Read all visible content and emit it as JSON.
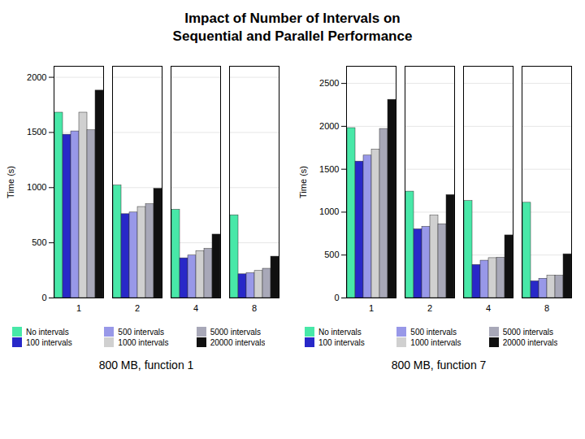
{
  "title": "Impact of Number of Intervals on\nSequential and Parallel Performance",
  "chart_data": [
    {
      "type": "bar",
      "subtitle": "800 MB, function 1",
      "categories": [
        "1",
        "2",
        "4",
        "8"
      ],
      "ylabel": "Time (s)",
      "series": [
        {
          "name": "No intervals",
          "color": "#48e8a8",
          "values": [
            1680,
            1020,
            800,
            750
          ]
        },
        {
          "name": "100 intervals",
          "color": "#2828c8",
          "values": [
            1480,
            760,
            360,
            215
          ]
        },
        {
          "name": "500 intervals",
          "color": "#9898e8",
          "values": [
            1510,
            775,
            385,
            225
          ]
        },
        {
          "name": "1000 intervals",
          "color": "#d0d0d0",
          "values": [
            1680,
            825,
            425,
            245
          ]
        },
        {
          "name": "5000 intervals",
          "color": "#a8a8b8",
          "values": [
            1520,
            850,
            445,
            265
          ]
        },
        {
          "name": "20000 intervals",
          "color": "#101010",
          "values": [
            1880,
            990,
            575,
            375
          ]
        }
      ],
      "ylim": [
        0,
        2100
      ],
      "yticks": [
        0,
        500,
        1000,
        1500,
        2000
      ],
      "grid": true,
      "legend": "bottom"
    },
    {
      "type": "bar",
      "subtitle": "800 MB, function 7",
      "categories": [
        "1",
        "2",
        "4",
        "8"
      ],
      "ylabel": "Time (s)",
      "series": [
        {
          "name": "No intervals",
          "color": "#48e8a8",
          "values": [
            1980,
            1240,
            1130,
            1110
          ]
        },
        {
          "name": "100 intervals",
          "color": "#2828c8",
          "values": [
            1590,
            800,
            385,
            195
          ]
        },
        {
          "name": "500 intervals",
          "color": "#9898e8",
          "values": [
            1660,
            830,
            435,
            225
          ]
        },
        {
          "name": "1000 intervals",
          "color": "#d0d0d0",
          "values": [
            1730,
            960,
            465,
            260
          ]
        },
        {
          "name": "5000 intervals",
          "color": "#a8a8b8",
          "values": [
            1970,
            860,
            470,
            260
          ]
        },
        {
          "name": "20000 intervals",
          "color": "#101010",
          "values": [
            2310,
            1200,
            730,
            510
          ]
        }
      ],
      "ylim": [
        0,
        2700
      ],
      "yticks": [
        0,
        500,
        1000,
        1500,
        2000,
        2500
      ],
      "grid": true,
      "legend": "bottom"
    }
  ]
}
